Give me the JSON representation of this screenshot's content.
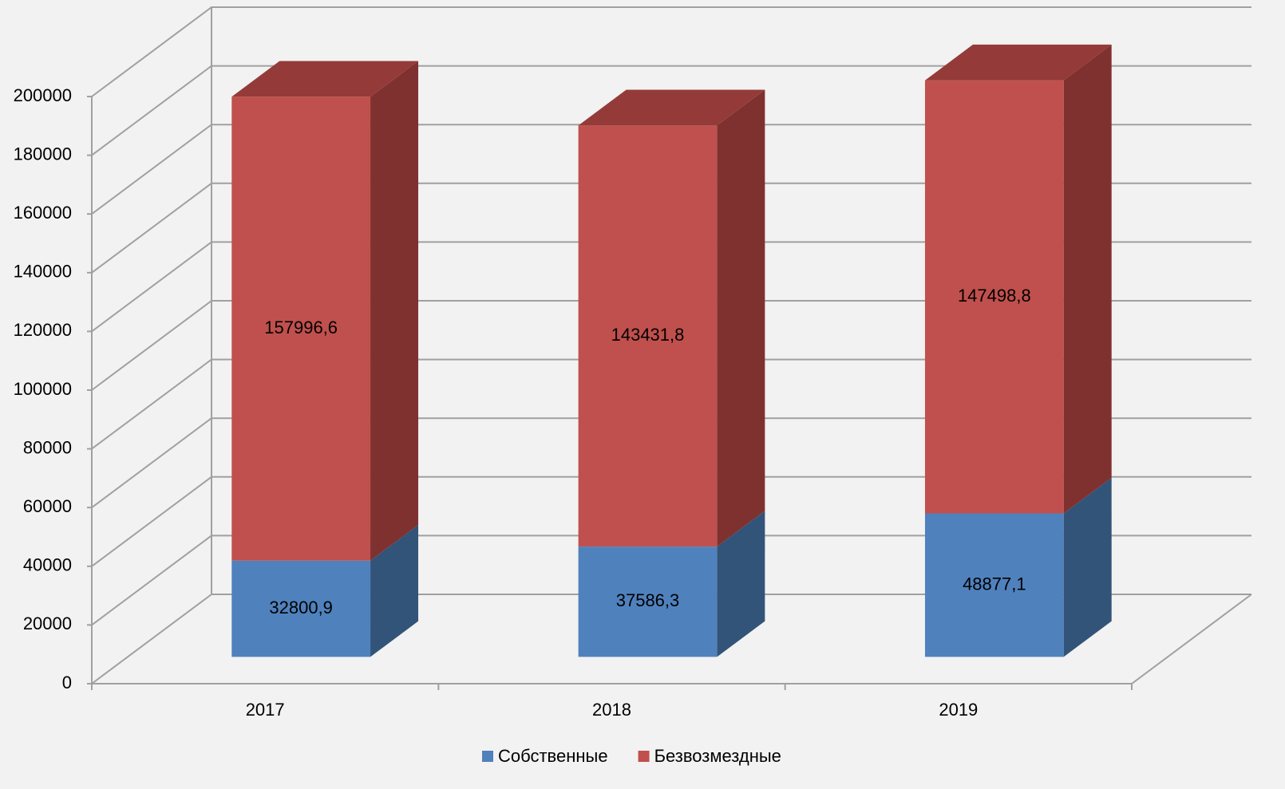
{
  "chart_data": {
    "type": "bar3d_stacked",
    "categories": [
      "2017",
      "2018",
      "2019"
    ],
    "series": [
      {
        "name": "Собственные",
        "color": "#4f81bd",
        "side_color": "#335479",
        "top_color": "#3f6797",
        "values": [
          32800.9,
          37586.3,
          48877.1
        ],
        "value_labels": [
          "32800,9",
          "37586,3",
          "48877,1"
        ]
      },
      {
        "name": "Безвозмездные",
        "color": "#c0504d",
        "side_color": "#7f3130",
        "top_color": "#943b39",
        "values": [
          157996.6,
          143431.8,
          147498.8
        ],
        "value_labels": [
          "157996,6",
          "143431,8",
          "147498,8"
        ]
      }
    ],
    "ylim": [
      0,
      200000
    ],
    "yticks": [
      0,
      20000,
      40000,
      60000,
      80000,
      100000,
      120000,
      140000,
      160000,
      180000,
      200000
    ],
    "grid": true,
    "legend": "bottom"
  }
}
